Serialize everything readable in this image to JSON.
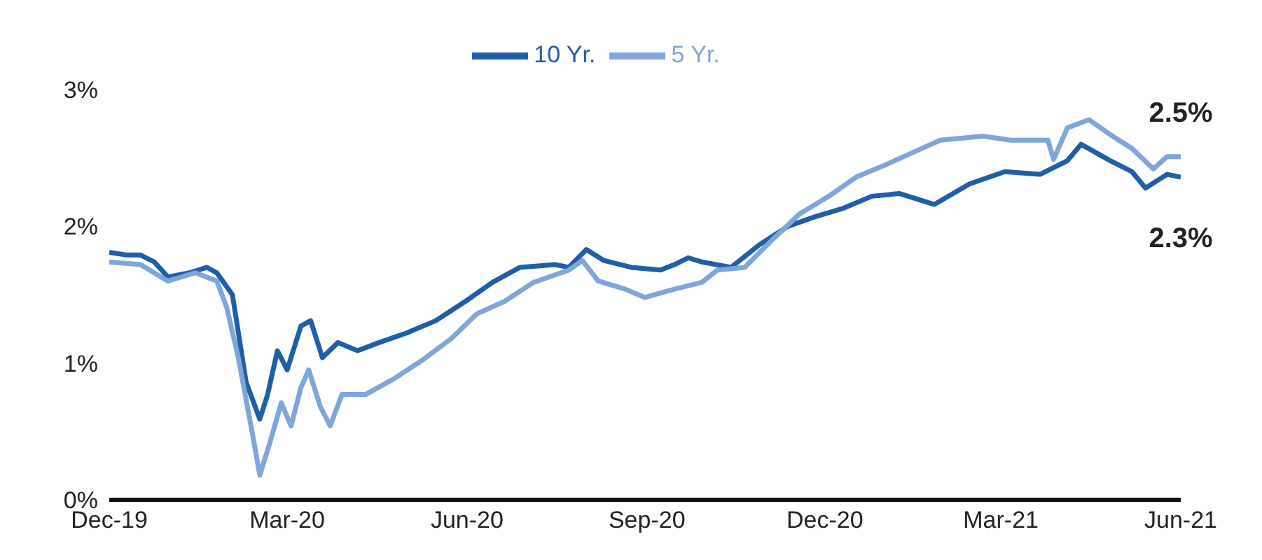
{
  "chart_data": {
    "type": "line",
    "legend": "top",
    "marker": "none",
    "line_style": "solid",
    "grid": false,
    "xlim": [
      "2019-12-01",
      "2021-06-01"
    ],
    "xticks": [
      {
        "value": "2019-12-01",
        "label": "Dec-19"
      },
      {
        "value": "2020-03-01",
        "label": "Mar-20"
      },
      {
        "value": "2020-06-01",
        "label": "Jun-20"
      },
      {
        "value": "2020-09-01",
        "label": "Sep-20"
      },
      {
        "value": "2020-12-01",
        "label": "Dec-20"
      },
      {
        "value": "2021-03-01",
        "label": "Mar-21"
      },
      {
        "value": "2021-06-01",
        "label": "Jun-21"
      }
    ],
    "ylim": [
      0,
      3
    ],
    "yticks": [
      {
        "value": 0,
        "label": "0%"
      },
      {
        "value": 1,
        "label": "1%"
      },
      {
        "value": 2,
        "label": "2%"
      },
      {
        "value": 3,
        "label": "3%"
      }
    ],
    "series": [
      {
        "name": "10 Yr.",
        "color": "#1f5fa8",
        "x": [
          "2019-12-01",
          "2019-12-10",
          "2019-12-17",
          "2019-12-24",
          "2019-12-31",
          "2020-01-11",
          "2020-01-20",
          "2020-01-25",
          "2020-02-02",
          "2020-02-09",
          "2020-02-16",
          "2020-02-20",
          "2020-02-25",
          "2020-03-01",
          "2020-03-08",
          "2020-03-13",
          "2020-03-19",
          "2020-03-27",
          "2020-04-06",
          "2020-04-17",
          "2020-05-01",
          "2020-05-16",
          "2020-05-31",
          "2020-06-14",
          "2020-06-28",
          "2020-07-16",
          "2020-07-23",
          "2020-08-01",
          "2020-08-10",
          "2020-08-24",
          "2020-09-08",
          "2020-09-15",
          "2020-09-22",
          "2020-09-29",
          "2020-10-14",
          "2020-10-28",
          "2020-11-12",
          "2020-11-26",
          "2020-12-10",
          "2020-12-25",
          "2021-01-08",
          "2021-01-26",
          "2021-02-13",
          "2021-03-03",
          "2021-03-21",
          "2021-04-04",
          "2021-04-11",
          "2021-04-26",
          "2021-05-07",
          "2021-05-14",
          "2021-05-25",
          "2021-06-01"
        ],
        "values": [
          1.81,
          1.79,
          1.79,
          1.74,
          1.63,
          1.66,
          1.7,
          1.66,
          1.5,
          0.86,
          0.59,
          0.77,
          1.09,
          0.95,
          1.27,
          1.31,
          1.04,
          1.15,
          1.09,
          1.15,
          1.22,
          1.31,
          1.45,
          1.59,
          1.7,
          1.72,
          1.7,
          1.83,
          1.75,
          1.7,
          1.68,
          1.72,
          1.77,
          1.74,
          1.7,
          1.86,
          2.0,
          2.07,
          2.13,
          2.22,
          2.24,
          2.16,
          2.31,
          2.4,
          2.38,
          2.48,
          2.6,
          2.48,
          2.4,
          2.28,
          2.38,
          2.36
        ]
      },
      {
        "name": "5 Yr.",
        "color": "#7ea6d8",
        "x": [
          "2019-12-01",
          "2019-12-17",
          "2019-12-31",
          "2020-01-14",
          "2020-01-25",
          "2020-01-30",
          "2020-02-05",
          "2020-02-12",
          "2020-02-16",
          "2020-02-21",
          "2020-02-27",
          "2020-03-03",
          "2020-03-08",
          "2020-03-12",
          "2020-03-18",
          "2020-03-23",
          "2020-03-29",
          "2020-04-10",
          "2020-04-24",
          "2020-05-09",
          "2020-05-24",
          "2020-06-06",
          "2020-06-20",
          "2020-07-05",
          "2020-07-23",
          "2020-07-30",
          "2020-08-07",
          "2020-08-21",
          "2020-08-31",
          "2020-09-15",
          "2020-09-29",
          "2020-10-07",
          "2020-10-21",
          "2020-11-04",
          "2020-11-18",
          "2020-12-03",
          "2020-12-17",
          "2021-01-01",
          "2021-01-15",
          "2021-01-29",
          "2021-02-20",
          "2021-03-06",
          "2021-03-25",
          "2021-03-28",
          "2021-04-04",
          "2021-04-15",
          "2021-04-26",
          "2021-05-07",
          "2021-05-18",
          "2021-05-25",
          "2021-06-01"
        ],
        "values": [
          1.74,
          1.72,
          1.6,
          1.66,
          1.6,
          1.41,
          1.04,
          0.5,
          0.18,
          0.41,
          0.71,
          0.54,
          0.82,
          0.95,
          0.68,
          0.54,
          0.77,
          0.77,
          0.88,
          1.02,
          1.18,
          1.36,
          1.45,
          1.59,
          1.68,
          1.75,
          1.6,
          1.54,
          1.48,
          1.54,
          1.59,
          1.68,
          1.7,
          1.9,
          2.09,
          2.22,
          2.36,
          2.45,
          2.54,
          2.63,
          2.66,
          2.63,
          2.63,
          2.49,
          2.72,
          2.78,
          2.67,
          2.57,
          2.42,
          2.51,
          2.51
        ]
      }
    ],
    "annotations": [
      {
        "text": "2.5%",
        "x": "2021-06-01",
        "y": 2.5
      },
      {
        "text": "2.3%",
        "x": "2021-06-01",
        "y": 2.3
      }
    ]
  }
}
